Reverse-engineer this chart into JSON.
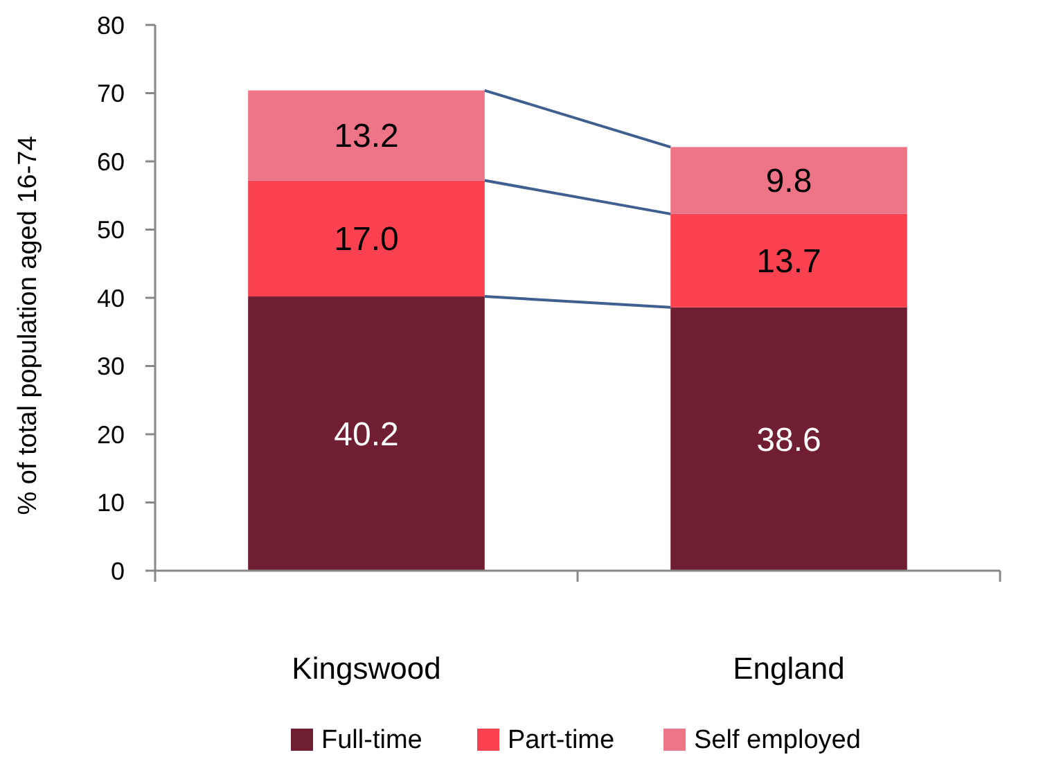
{
  "chart_data": {
    "type": "bar",
    "stacked": true,
    "categories": [
      "Kingswood",
      "England"
    ],
    "series": [
      {
        "name": "Full-time",
        "color": "#701e32",
        "values": [
          40.2,
          38.6
        ],
        "value_labels": [
          "40.2",
          "38.6"
        ]
      },
      {
        "name": "Part-time",
        "color": "#fa4150",
        "values": [
          17.0,
          13.7
        ],
        "value_labels": [
          "17.0",
          "13.7"
        ]
      },
      {
        "name": "Self employed",
        "color": "#ee7488",
        "values": [
          13.2,
          9.8
        ],
        "value_labels": [
          "13.2",
          "9.8"
        ]
      }
    ],
    "ylabel": "% of total population aged 16-74",
    "ylim": [
      0,
      80
    ],
    "yticks": [
      0,
      10,
      20,
      30,
      40,
      50,
      60,
      70,
      80
    ],
    "grid": false,
    "legend": "bottom"
  }
}
